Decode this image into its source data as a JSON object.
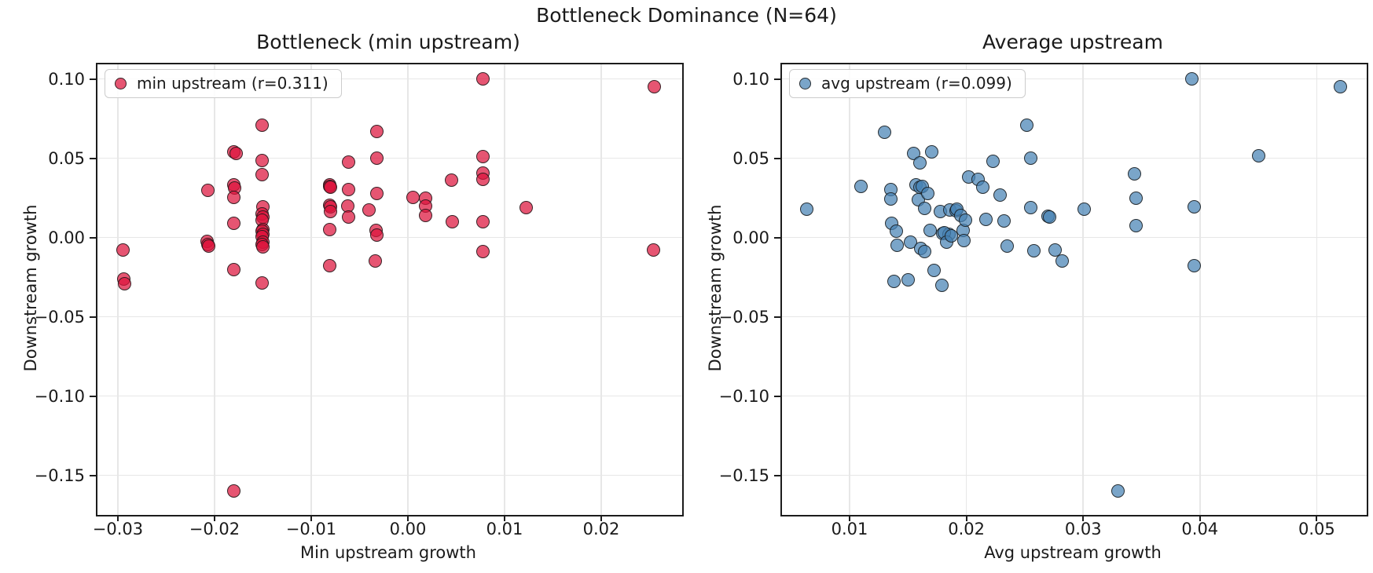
{
  "figure": {
    "suptitle": "Bottleneck Dominance (N=64)",
    "background_color": "#ffffff",
    "text_color": "#1a1a1a",
    "grid_color": "#e7e7e7",
    "spine_color": "#1c1c1c"
  },
  "chart_data": [
    {
      "type": "scatter",
      "title": "Bottleneck (min upstream)",
      "xlabel": "Min upstream growth",
      "ylabel": "Downstream growth",
      "legend": {
        "label": "min upstream (r=0.311)",
        "position": "upper left",
        "r_value": 0.311
      },
      "n_points": 64,
      "marker_fill": "rgba(220,20,60,0.72)",
      "marker_edge": "rgba(25,25,25,0.85)",
      "marker_color_name": "crimson",
      "grid": true,
      "xlim": [
        -0.03211,
        0.02837
      ],
      "ylim": [
        -0.175,
        0.1092
      ],
      "xticks": [
        -0.03,
        -0.02,
        -0.01,
        0.0,
        0.01,
        0.02
      ],
      "xtick_labels": [
        "−0.03",
        "−0.02",
        "−0.01",
        "0.00",
        "0.01",
        "0.02"
      ],
      "yticks": [
        0.1,
        0.05,
        0.0,
        -0.05,
        -0.1,
        -0.15
      ],
      "ytick_labels": [
        "0.10",
        "0.05",
        "0.00",
        "−0.05",
        "−0.10",
        "−0.15"
      ],
      "points": [
        [
          -0.0295,
          -0.008
        ],
        [
          -0.0294,
          -0.026
        ],
        [
          -0.0293,
          -0.029
        ],
        [
          -0.0207,
          0.0295
        ],
        [
          -0.0208,
          -0.0025
        ],
        [
          -0.0207,
          -0.0042
        ],
        [
          -0.0206,
          -0.0056
        ],
        [
          -0.018,
          0.054
        ],
        [
          -0.0178,
          0.0531
        ],
        [
          -0.018,
          0.033
        ],
        [
          -0.0179,
          0.0311
        ],
        [
          -0.018,
          0.0255
        ],
        [
          -0.018,
          0.009
        ],
        [
          -0.018,
          -0.0205
        ],
        [
          -0.018,
          -0.16
        ],
        [
          -0.0151,
          0.071
        ],
        [
          -0.0151,
          0.0485
        ],
        [
          -0.0151,
          0.0395
        ],
        [
          -0.015,
          0.0195
        ],
        [
          -0.0151,
          0.015
        ],
        [
          -0.015,
          0.0128
        ],
        [
          -0.0151,
          0.011
        ],
        [
          -0.015,
          0.0052
        ],
        [
          -0.0151,
          0.0038
        ],
        [
          -0.015,
          0.0022
        ],
        [
          -0.0151,
          0.0005
        ],
        [
          -0.015,
          -0.0028
        ],
        [
          -0.0151,
          -0.0042
        ],
        [
          -0.015,
          -0.0058
        ],
        [
          -0.0151,
          -0.0285
        ],
        [
          -0.0081,
          0.0332
        ],
        [
          -0.0081,
          0.032
        ],
        [
          -0.008,
          0.0318
        ],
        [
          -0.0081,
          0.0205
        ],
        [
          -0.008,
          0.0192
        ],
        [
          -0.008,
          0.0165
        ],
        [
          -0.0081,
          0.005
        ],
        [
          -0.0081,
          -0.018
        ],
        [
          -0.0061,
          0.0475
        ],
        [
          -0.0061,
          0.03
        ],
        [
          -0.0062,
          0.02
        ],
        [
          -0.0061,
          0.013
        ],
        [
          -0.004,
          0.0175
        ],
        [
          -0.0032,
          0.067
        ],
        [
          -0.0032,
          0.0502
        ],
        [
          -0.0032,
          0.028
        ],
        [
          -0.0033,
          0.0045
        ],
        [
          -0.0032,
          0.0015
        ],
        [
          -0.0034,
          -0.0148
        ],
        [
          0.0005,
          0.0255
        ],
        [
          0.0018,
          0.025
        ],
        [
          0.0018,
          0.02
        ],
        [
          0.0018,
          0.0138
        ],
        [
          0.0045,
          0.036
        ],
        [
          0.0046,
          0.01
        ],
        [
          0.0078,
          0.1
        ],
        [
          0.0078,
          0.051
        ],
        [
          0.0078,
          0.0405
        ],
        [
          0.0078,
          0.0368
        ],
        [
          0.0078,
          0.01
        ],
        [
          0.0078,
          -0.009
        ],
        [
          0.0122,
          0.019
        ],
        [
          0.0255,
          0.095
        ],
        [
          0.0254,
          -0.008
        ]
      ]
    },
    {
      "type": "scatter",
      "title": "Average upstream",
      "xlabel": "Avg upstream growth",
      "ylabel": "Downstream growth",
      "legend": {
        "label": "avg upstream (r=0.099)",
        "position": "upper left",
        "r_value": 0.099
      },
      "n_points": 64,
      "marker_fill": "rgba(70,130,180,0.72)",
      "marker_edge": "rgba(25,25,25,0.85)",
      "marker_color_name": "steelblue",
      "grid": true,
      "xlim": [
        0.00421,
        0.05428
      ],
      "ylim": [
        -0.175,
        0.1092
      ],
      "xticks": [
        0.01,
        0.02,
        0.03,
        0.04,
        0.05
      ],
      "xtick_labels": [
        "0.01",
        "0.02",
        "0.03",
        "0.04",
        "0.05"
      ],
      "yticks": [
        0.1,
        0.05,
        0.0,
        -0.05,
        -0.1,
        -0.15
      ],
      "ytick_labels": [
        "0.10",
        "0.05",
        "0.00",
        "−0.05",
        "−0.10",
        "−0.15"
      ],
      "points": [
        [
          0.0063,
          0.018
        ],
        [
          0.011,
          0.032
        ],
        [
          0.013,
          0.0665
        ],
        [
          0.0135,
          0.03
        ],
        [
          0.0135,
          0.0245
        ],
        [
          0.0136,
          0.009
        ],
        [
          0.014,
          0.004
        ],
        [
          0.0138,
          -0.0275
        ],
        [
          0.0141,
          -0.005
        ],
        [
          0.015,
          -0.0265
        ],
        [
          0.0152,
          -0.003
        ],
        [
          0.0155,
          0.053
        ],
        [
          0.0157,
          0.033
        ],
        [
          0.016,
          0.0315
        ],
        [
          0.0162,
          0.0322
        ],
        [
          0.016,
          0.047
        ],
        [
          0.0159,
          0.024
        ],
        [
          0.0161,
          -0.007
        ],
        [
          0.0164,
          0.0185
        ],
        [
          0.0164,
          -0.009
        ],
        [
          0.0167,
          0.028
        ],
        [
          0.017,
          0.054
        ],
        [
          0.0169,
          0.0045
        ],
        [
          0.0172,
          -0.021
        ],
        [
          0.0178,
          0.0165
        ],
        [
          0.0179,
          -0.03
        ],
        [
          0.018,
          0.0025
        ],
        [
          0.0185,
          0.002
        ],
        [
          0.0181,
          0.003
        ],
        [
          0.0183,
          -0.003
        ],
        [
          0.0186,
          0.0175
        ],
        [
          0.0187,
          0.001
        ],
        [
          0.0191,
          0.0168
        ],
        [
          0.0192,
          0.018
        ],
        [
          0.0195,
          0.014
        ],
        [
          0.0197,
          0.0045
        ],
        [
          0.0198,
          -0.002
        ],
        [
          0.0199,
          0.011
        ],
        [
          0.0202,
          0.038
        ],
        [
          0.021,
          0.0365
        ],
        [
          0.0214,
          0.0315
        ],
        [
          0.0217,
          0.0115
        ],
        [
          0.0223,
          0.048
        ],
        [
          0.0229,
          0.027
        ],
        [
          0.0232,
          0.0105
        ],
        [
          0.0235,
          -0.0055
        ],
        [
          0.0252,
          0.071
        ],
        [
          0.0255,
          0.05
        ],
        [
          0.0255,
          0.019
        ],
        [
          0.0258,
          -0.0085
        ],
        [
          0.027,
          0.0135
        ],
        [
          0.0271,
          0.0128
        ],
        [
          0.0276,
          -0.008
        ],
        [
          0.0282,
          -0.015
        ],
        [
          0.0301,
          0.018
        ],
        [
          0.033,
          -0.16
        ],
        [
          0.0344,
          0.04
        ],
        [
          0.0345,
          0.025
        ],
        [
          0.0345,
          0.0075
        ],
        [
          0.0393,
          0.1
        ],
        [
          0.0395,
          0.0195
        ],
        [
          0.0395,
          -0.018
        ],
        [
          0.045,
          0.0515
        ],
        [
          0.052,
          0.095
        ]
      ]
    }
  ]
}
